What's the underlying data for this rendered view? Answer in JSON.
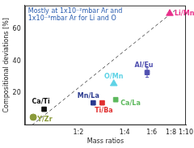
{
  "chart_data": {
    "type": "scatter",
    "annotation": [
      "Mostly at 1x10⁻²mbar Ar and",
      "1x10⁻³mbar Ar for Li and O"
    ],
    "x_label": "Mass ratios",
    "y_label": "Compositional deviations [%]",
    "log": "x",
    "grid": false,
    "xlim": [
      0.9,
      10
    ],
    "xticks": [
      {
        "value": 2,
        "label": "1:2"
      },
      {
        "value": 4,
        "label": "1:4"
      },
      {
        "value": 6,
        "label": "1:6"
      },
      {
        "value": 8,
        "label": "1:8"
      },
      {
        "value": 10,
        "label": "1:10"
      }
    ],
    "ylim": [
      0,
      75
    ],
    "yticks": [
      20,
      40,
      60
    ],
    "series": [
      {
        "name": "Li/Mn",
        "color": "#e8308a",
        "marker": "triangle",
        "x": [
          7.85
        ],
        "values": [
          70
        ]
      },
      {
        "name": "Al/Eu",
        "color": "#5050b0",
        "marker": "square",
        "x": [
          5.6
        ],
        "values": [
          33
        ],
        "errors": [
          3
        ]
      },
      {
        "name": "O/Mn",
        "color": "#5fd3e6",
        "marker": "triangle",
        "x": [
          3.4
        ],
        "values": [
          26
        ]
      },
      {
        "name": "Ca/La",
        "color": "#5cb85c",
        "marker": "square",
        "x": [
          3.5
        ],
        "values": [
          16
        ]
      },
      {
        "name": "Ti/Ba",
        "color": "#e03030",
        "marker": "square",
        "x": [
          2.86
        ],
        "values": [
          14
        ]
      },
      {
        "name": "Mn/La",
        "color": "#2a3a8f",
        "marker": "square",
        "x": [
          2.5
        ],
        "values": [
          14
        ]
      },
      {
        "name": "Ca/Ti",
        "color": "#111111",
        "marker": "square",
        "x": [
          1.2
        ],
        "values": [
          10
        ]
      },
      {
        "name": "Y/Zr",
        "color": "#8a9a3a",
        "marker": "circle",
        "x": [
          1.02
        ],
        "values": [
          5
        ]
      }
    ],
    "trend_line": {
      "x": [
        1,
        8.5
      ],
      "values": [
        0,
        72
      ],
      "line_style": "dashed",
      "color": "#555555"
    }
  }
}
